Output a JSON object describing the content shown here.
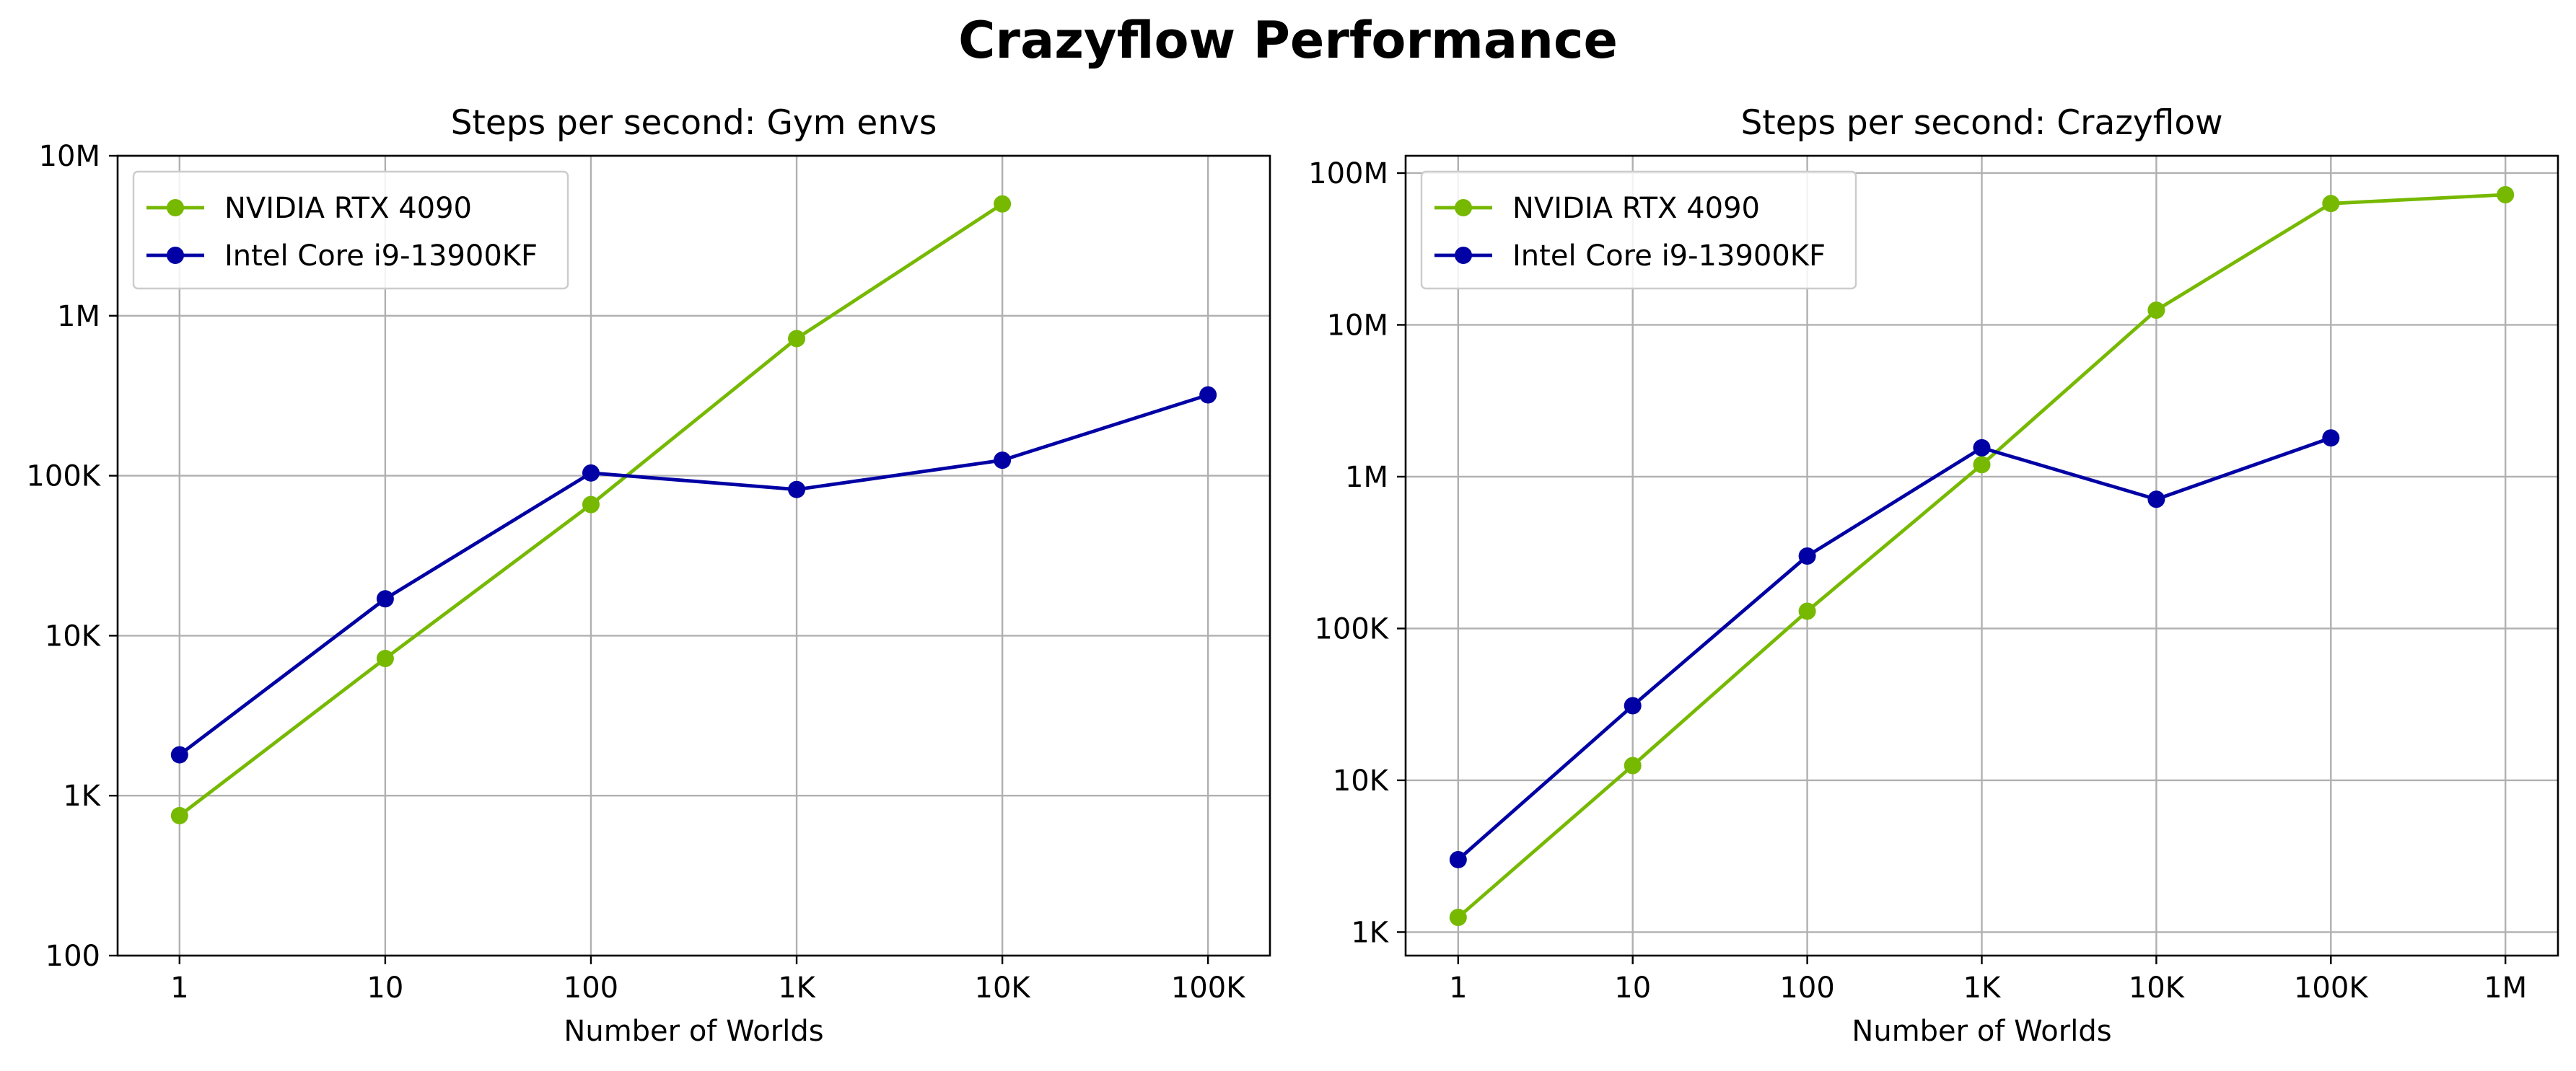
{
  "figure": {
    "title": "Crazyflow Performance"
  },
  "chart_data": [
    {
      "type": "line",
      "title": "Steps per second: Gym envs",
      "xlabel": "Number of Worlds",
      "ylabel": "",
      "x_scale": "log",
      "y_scale": "log",
      "xlim": [
        0.5,
        200000
      ],
      "ylim": [
        100,
        10000000
      ],
      "x_ticks": [
        1,
        10,
        100,
        1000,
        10000,
        100000
      ],
      "x_tick_labels": [
        "1",
        "10",
        "100",
        "1K",
        "10K",
        "100K"
      ],
      "y_ticks": [
        100,
        1000,
        10000,
        100000,
        1000000,
        10000000
      ],
      "y_tick_labels": [
        "100",
        "1K",
        "10K",
        "100K",
        "1M",
        "10M"
      ],
      "grid": true,
      "legend_position": "top-left",
      "series": [
        {
          "name": "NVIDIA RTX 4090",
          "color": "#76b900",
          "marker": "circle",
          "x": [
            1,
            10,
            100,
            1000,
            10000
          ],
          "y": [
            750,
            7200,
            66000,
            720000,
            5000000
          ]
        },
        {
          "name": "Intel Core i9-13900KF",
          "color": "#0000a4",
          "marker": "circle",
          "x": [
            1,
            10,
            100,
            1000,
            10000,
            100000
          ],
          "y": [
            1800,
            17000,
            104000,
            82000,
            125000,
            320000
          ]
        }
      ]
    },
    {
      "type": "line",
      "title": "Steps per second: Crazyflow",
      "xlabel": "Number of Worlds",
      "ylabel": "",
      "x_scale": "log",
      "y_scale": "log",
      "xlim": [
        0.5,
        2000000
      ],
      "ylim": [
        700,
        130000000
      ],
      "x_ticks": [
        1,
        10,
        100,
        1000,
        10000,
        100000,
        1000000
      ],
      "x_tick_labels": [
        "1",
        "10",
        "100",
        "1K",
        "10K",
        "100K",
        "1M"
      ],
      "y_ticks": [
        1000,
        10000,
        100000,
        1000000,
        10000000,
        100000000
      ],
      "y_tick_labels": [
        "1K",
        "10K",
        "100K",
        "1M",
        "10M",
        "100M"
      ],
      "grid": true,
      "legend_position": "top-left",
      "series": [
        {
          "name": "NVIDIA RTX 4090",
          "color": "#76b900",
          "marker": "circle",
          "x": [
            1,
            10,
            100,
            1000,
            10000,
            100000,
            1000000
          ],
          "y": [
            1250,
            12500,
            130000,
            1200000,
            12500000,
            63000000,
            72000000
          ]
        },
        {
          "name": "Intel Core i9-13900KF",
          "color": "#0000a4",
          "marker": "circle",
          "x": [
            1,
            10,
            100,
            1000,
            10000,
            100000
          ],
          "y": [
            3000,
            31000,
            300000,
            1550000,
            710000,
            1800000
          ]
        }
      ]
    }
  ]
}
